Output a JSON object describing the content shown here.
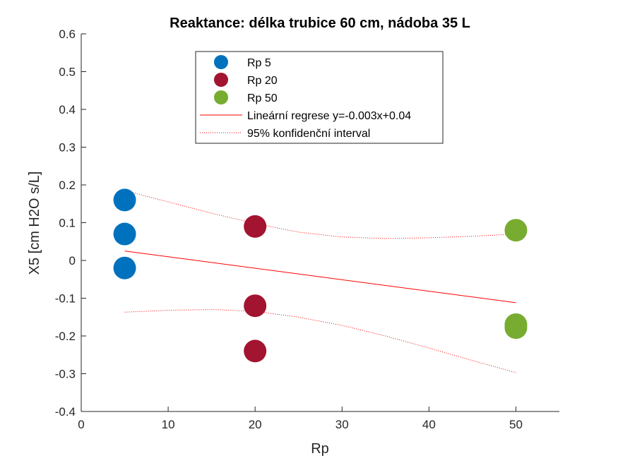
{
  "chart_data": {
    "type": "scatter",
    "title": "Reaktance: délka trubice 60 cm, nádoba 35 L",
    "xlabel": "Rp",
    "ylabel": "X5 [cm H2O s/L]",
    "xlim": [
      0,
      55
    ],
    "ylim": [
      -0.4,
      0.6
    ],
    "xticks": [
      "0",
      "10",
      "20",
      "30",
      "40",
      "50"
    ],
    "yticks": [
      "-0.4",
      "-0.3",
      "-0.2",
      "-0.1",
      "0",
      "0.1",
      "0.2",
      "0.3",
      "0.4",
      "0.5",
      "0.6"
    ],
    "grid": false,
    "legend_position": "top-center",
    "series": [
      {
        "name": "Rp 5",
        "color": "#0072BD",
        "marker": "circle",
        "points": [
          [
            5,
            0.16
          ],
          [
            5,
            0.07
          ],
          [
            5,
            -0.02
          ]
        ]
      },
      {
        "name": "Rp 20",
        "color": "#A2142F",
        "marker": "circle",
        "points": [
          [
            20,
            0.09
          ],
          [
            20,
            -0.12
          ],
          [
            20,
            -0.24
          ]
        ]
      },
      {
        "name": "Rp 50",
        "color": "#77AC30",
        "marker": "circle",
        "points": [
          [
            50,
            0.08
          ],
          [
            50,
            -0.17
          ],
          [
            50,
            -0.178
          ]
        ]
      },
      {
        "name": "Lineární regrese y=-0.003x+0.04",
        "color": "#FF0000",
        "line": "solid",
        "points": [
          [
            5,
            0.025
          ],
          [
            50,
            -0.112
          ]
        ]
      },
      {
        "name": "95% konfidenční interval",
        "color": "#FF0000",
        "line": "dotted",
        "upper": [
          [
            5,
            0.185
          ],
          [
            10,
            0.155
          ],
          [
            15,
            0.125
          ],
          [
            20,
            0.098
          ],
          [
            25,
            0.075
          ],
          [
            30,
            0.062
          ],
          [
            35,
            0.058
          ],
          [
            40,
            0.06
          ],
          [
            45,
            0.064
          ],
          [
            50,
            0.07
          ]
        ],
        "lower": [
          [
            5,
            -0.137
          ],
          [
            10,
            -0.132
          ],
          [
            15,
            -0.13
          ],
          [
            20,
            -0.135
          ],
          [
            25,
            -0.15
          ],
          [
            30,
            -0.172
          ],
          [
            35,
            -0.2
          ],
          [
            40,
            -0.232
          ],
          [
            45,
            -0.265
          ],
          [
            50,
            -0.297
          ]
        ]
      }
    ]
  }
}
